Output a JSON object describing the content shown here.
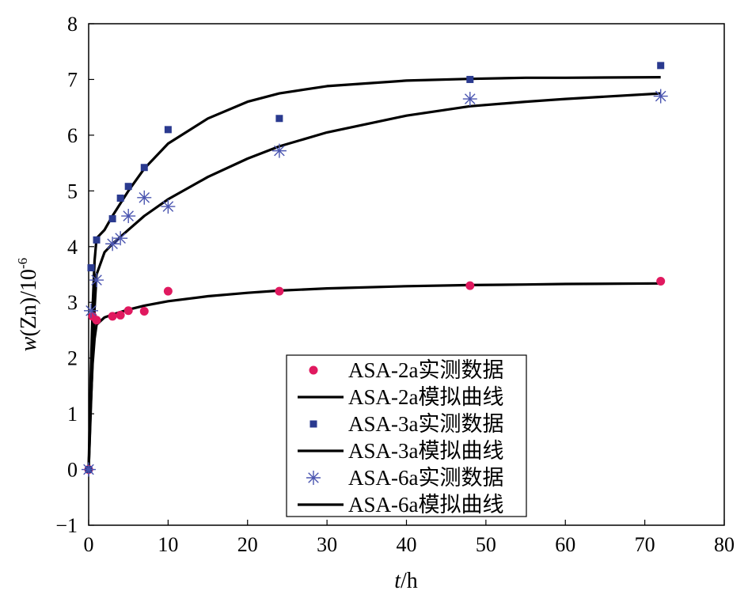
{
  "chart_data": {
    "type": "scatter",
    "xlabel": {
      "var": "t",
      "rest": "/h"
    },
    "ylabel": {
      "var": "w",
      "rest": "(Zn)/10",
      "sup": "-6"
    },
    "xlim": [
      0,
      80
    ],
    "ylim": [
      -1,
      8
    ],
    "xticks": [
      0,
      10,
      20,
      30,
      40,
      50,
      60,
      70,
      80
    ],
    "yticks": [
      -1,
      0,
      1,
      2,
      3,
      4,
      5,
      6,
      7,
      8
    ],
    "xtick_labels": [
      "0",
      "10",
      "20",
      "30",
      "40",
      "50",
      "60",
      "70",
      "80"
    ],
    "ytick_labels": [
      "−1",
      "0",
      "1",
      "2",
      "3",
      "4",
      "5",
      "6",
      "7",
      "8"
    ],
    "grid": false,
    "legend_position": "bottom-center",
    "series": [
      {
        "name": "ASA-2a实测数据",
        "kind": "scatter",
        "marker": "circle",
        "color": "#e0195f",
        "points": [
          [
            0,
            0
          ],
          [
            0.5,
            2.75
          ],
          [
            1,
            2.68
          ],
          [
            3,
            2.75
          ],
          [
            4,
            2.77
          ],
          [
            5,
            2.85
          ],
          [
            7,
            2.84
          ],
          [
            10,
            3.2
          ],
          [
            24,
            3.2
          ],
          [
            48,
            3.3
          ],
          [
            72,
            3.38
          ]
        ]
      },
      {
        "name": "ASA-2a模拟曲线",
        "kind": "line",
        "color": "#000000",
        "points": [
          [
            0,
            0
          ],
          [
            0.25,
            1.1
          ],
          [
            0.5,
            1.9
          ],
          [
            0.75,
            2.35
          ],
          [
            1,
            2.6
          ],
          [
            2,
            2.73
          ],
          [
            3,
            2.78
          ],
          [
            5,
            2.87
          ],
          [
            7,
            2.94
          ],
          [
            10,
            3.02
          ],
          [
            15,
            3.11
          ],
          [
            20,
            3.17
          ],
          [
            24,
            3.21
          ],
          [
            30,
            3.25
          ],
          [
            40,
            3.29
          ],
          [
            48,
            3.31
          ],
          [
            55,
            3.32
          ],
          [
            60,
            3.33
          ],
          [
            72,
            3.34
          ]
        ]
      },
      {
        "name": "ASA-3a实测数据",
        "kind": "scatter",
        "marker": "square",
        "color": "#2a3a8f",
        "points": [
          [
            0,
            0
          ],
          [
            0.3,
            3.62
          ],
          [
            1,
            4.12
          ],
          [
            3,
            4.5
          ],
          [
            4,
            4.87
          ],
          [
            5,
            5.08
          ],
          [
            7,
            5.42
          ],
          [
            10,
            6.1
          ],
          [
            24,
            6.3
          ],
          [
            48,
            7.0
          ],
          [
            72,
            7.25
          ]
        ]
      },
      {
        "name": "ASA-3a模拟曲线",
        "kind": "line",
        "color": "#000000",
        "points": [
          [
            0,
            0
          ],
          [
            0.25,
            1.6
          ],
          [
            0.5,
            2.9
          ],
          [
            0.75,
            3.75
          ],
          [
            1,
            4.15
          ],
          [
            2,
            4.3
          ],
          [
            3,
            4.55
          ],
          [
            5,
            5.0
          ],
          [
            7,
            5.4
          ],
          [
            10,
            5.85
          ],
          [
            15,
            6.3
          ],
          [
            20,
            6.6
          ],
          [
            24,
            6.75
          ],
          [
            30,
            6.88
          ],
          [
            40,
            6.98
          ],
          [
            48,
            7.01
          ],
          [
            55,
            7.03
          ],
          [
            60,
            7.03
          ],
          [
            72,
            7.04
          ]
        ]
      },
      {
        "name": "ASA-6a实测数据",
        "kind": "scatter",
        "marker": "asterisk",
        "color": "#4a55b0",
        "points": [
          [
            0,
            0
          ],
          [
            0.3,
            2.85
          ],
          [
            1,
            3.4
          ],
          [
            3,
            4.05
          ],
          [
            4,
            4.15
          ],
          [
            5,
            4.55
          ],
          [
            7,
            4.88
          ],
          [
            10,
            4.72
          ],
          [
            24,
            5.72
          ],
          [
            48,
            6.65
          ],
          [
            72,
            6.7
          ]
        ]
      },
      {
        "name": "ASA-6a模拟曲线",
        "kind": "line",
        "color": "#000000",
        "points": [
          [
            0,
            0
          ],
          [
            0.25,
            1.0
          ],
          [
            0.5,
            2.0
          ],
          [
            0.75,
            2.9
          ],
          [
            1,
            3.5
          ],
          [
            2,
            3.9
          ],
          [
            3,
            4.05
          ],
          [
            5,
            4.3
          ],
          [
            7,
            4.55
          ],
          [
            10,
            4.85
          ],
          [
            15,
            5.25
          ],
          [
            20,
            5.58
          ],
          [
            24,
            5.8
          ],
          [
            30,
            6.05
          ],
          [
            40,
            6.35
          ],
          [
            48,
            6.52
          ],
          [
            55,
            6.6
          ],
          [
            60,
            6.65
          ],
          [
            72,
            6.75
          ]
        ]
      }
    ]
  }
}
